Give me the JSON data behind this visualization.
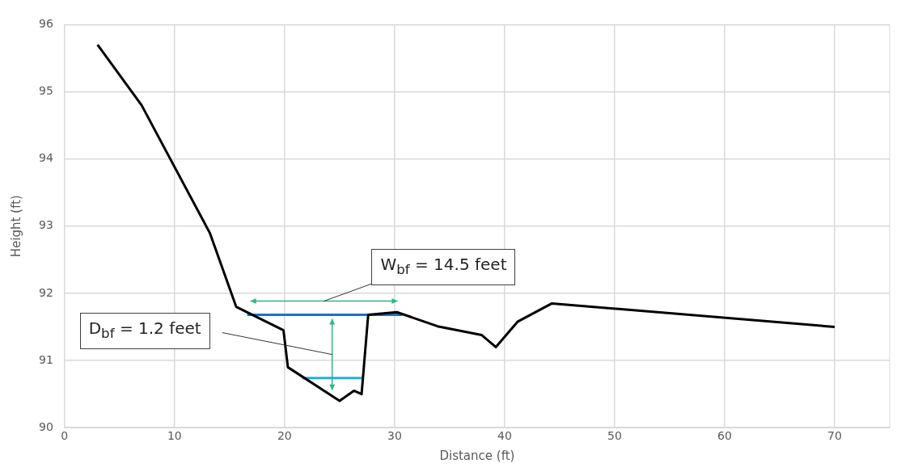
{
  "chart_data": {
    "type": "line",
    "xlabel": "Distance (ft)",
    "ylabel": "Height (ft)",
    "xlim": [
      0,
      75
    ],
    "xticks": [
      0,
      10,
      20,
      30,
      40,
      50,
      60,
      70
    ],
    "ylim": [
      90,
      96
    ],
    "yticks": [
      90,
      91,
      92,
      93,
      94,
      95,
      96
    ],
    "grid": true,
    "marker": "none",
    "line_style": "solid",
    "series": [
      {
        "color": "#000000",
        "x": [
          3,
          7,
          13.2,
          15.6,
          19.9,
          20.3,
          25,
          26.3,
          27,
          27.6,
          30.2,
          33.9,
          37.9,
          39.2,
          41.2,
          44.3,
          70
        ],
        "values": [
          95.7,
          94.8,
          92.9,
          91.8,
          91.45,
          90.9,
          90.4,
          90.55,
          90.5,
          91.68,
          91.72,
          91.51,
          91.38,
          91.2,
          91.58,
          91.85,
          91.5
        ]
      },
      {
        "color": "#1f6fc5",
        "x": [
          16.6,
          30.7
        ],
        "values": [
          91.68,
          91.68
        ]
      },
      {
        "color": "#1fb0e8",
        "x": [
          21.6,
          27.05
        ],
        "values": [
          90.74,
          90.74
        ]
      }
    ],
    "annotations": [
      "W$_{bf}$ = 14.5 feet",
      "D$_{bf}$ = 1.2 feet"
    ]
  }
}
